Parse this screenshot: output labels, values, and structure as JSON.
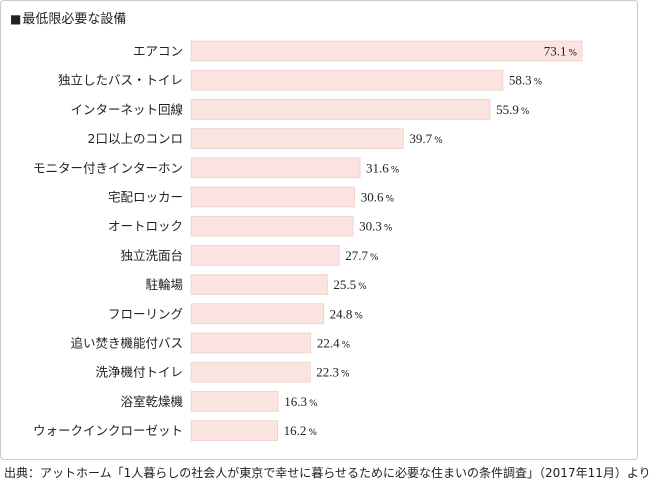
{
  "title": "最低限必要な設備",
  "source": "出典：アットホーム「1人暮らしの社会人が東京で幸せに暮らせるために必要な住まいの条件調査」（2017年11月）より",
  "chart_data": {
    "type": "bar",
    "orientation": "horizontal",
    "unit": "%",
    "bar_color": "#fbe3e0",
    "bar_border": "#e8c9c4",
    "categories": [
      "エアコン",
      "独立したバス・トイレ",
      "インターネット回線",
      "2口以上のコンロ",
      "モニター付きインターホン",
      "宅配ロッカー",
      "オートロック",
      "独立洗面台",
      "駐輪場",
      "フローリング",
      "追い焚き機能付バス",
      "洗浄機付トイレ",
      "浴室乾燥機",
      "ウォークインクローゼット"
    ],
    "values": [
      73.1,
      58.3,
      55.9,
      39.7,
      31.6,
      30.6,
      30.3,
      27.7,
      25.5,
      24.8,
      22.4,
      22.3,
      16.3,
      16.2
    ],
    "xlim": [
      0,
      80
    ]
  }
}
